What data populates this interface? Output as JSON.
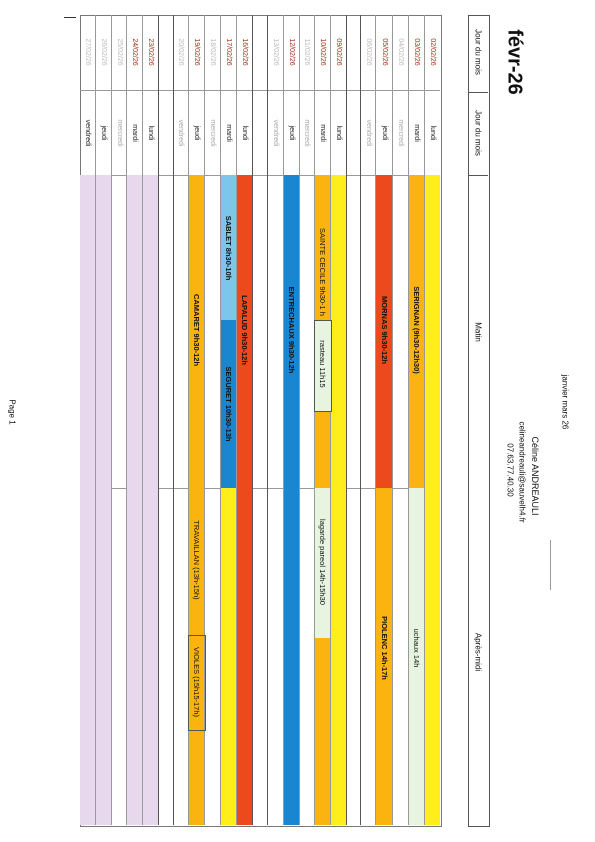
{
  "header": {
    "period": "janvier mars 26",
    "name": "Céline ANDREAULI",
    "email": "celineandreauli@sauvelh4.fr",
    "phone": "07.63.77.40.30",
    "month": "févr-26"
  },
  "columns": {
    "date": "Jour du mois",
    "weekday": "Jour du mois",
    "morning": "Matin",
    "afternoon": "Après-midi"
  },
  "rows": [
    {
      "date": "02/02/26",
      "day": "lundi"
    },
    {
      "date": "03/02/26",
      "day": "mardi"
    },
    {
      "date": "04/02/26",
      "day": "mercredi"
    },
    {
      "date": "05/02/26",
      "day": "jeudi"
    },
    {
      "date": "06/02/26",
      "day": "vendredi"
    },
    {
      "date": "09/02/26",
      "day": "lundi"
    },
    {
      "date": "10/02/26",
      "day": "mardi"
    },
    {
      "date": "11/02/26",
      "day": "mercredi"
    },
    {
      "date": "12/02/26",
      "day": "jeudi"
    },
    {
      "date": "13/02/26",
      "day": "vendredi"
    },
    {
      "date": "16/02/26",
      "day": "lundi"
    },
    {
      "date": "17/02/26",
      "day": "mardi"
    },
    {
      "date": "18/02/26",
      "day": "mercredi"
    },
    {
      "date": "19/02/26",
      "day": "jeudi"
    },
    {
      "date": "20/02/26",
      "day": "vendredi"
    },
    {
      "date": "23/02/26",
      "day": "lundi"
    },
    {
      "date": "24/02/26",
      "day": "mardi"
    },
    {
      "date": "25/02/26",
      "day": "mercredi"
    },
    {
      "date": "26/02/26",
      "day": "jeudi"
    },
    {
      "date": "27/02/26",
      "day": "vendredi"
    }
  ],
  "events": {
    "serignan": "SERIGNAN (9h30-12h30)",
    "uchaux": "uchaux 14h",
    "mornas": "MORNAS 9h30-12h",
    "piolenc": "PIOLENC 14h-17h",
    "sainte_cecile": "SAINTE CECILE 9h30-1 h",
    "rasteau": "rasteau 11h15",
    "lagarde": "lagarde pareol 14h-15h30",
    "entrechaux": "ENTRECHAUX 9h30-12h",
    "lapalud": "LAPALUD 9h30-12h",
    "sablet": "SABLET 8h30-10h",
    "seguret": "SEGURET 10h30-13h",
    "camaret": "CAMARET 9h30-12h",
    "travaillan": "TRAVAILLAN (13h-15h)",
    "violes": "VIOLES (15h15-17h)"
  },
  "footer": {
    "page": "Page 1"
  },
  "colors": {
    "yellow": "#ffee1a",
    "orange": "#fbb40f",
    "red": "#ec4a1c",
    "blue": "#1a86d0",
    "lightblue": "#7cc6ec",
    "lilac": "#e8d8ee",
    "palegreen": "#e6f4e0",
    "date_text": "#a0301a"
  }
}
